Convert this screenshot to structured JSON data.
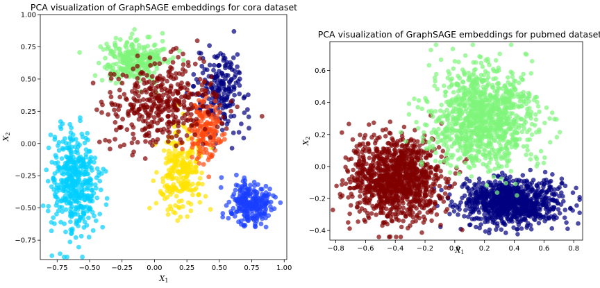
{
  "chart_data": [
    {
      "type": "scatter",
      "title": "PCA visualization of GraphSAGE embeddings for cora dataset",
      "xlabel": "X",
      "xlabel_sub": "1",
      "ylabel": "X",
      "ylabel_sub": "2",
      "xlim": [
        -0.88,
        1.02
      ],
      "ylim": [
        -0.9,
        1.0
      ],
      "xticks": [
        -0.75,
        -0.5,
        -0.25,
        0.0,
        0.25,
        0.5,
        0.75,
        1.0
      ],
      "xtick_labels": [
        "−0.75",
        "−0.50",
        "−0.25",
        "0.00",
        "0.25",
        "0.50",
        "0.75",
        "1.00"
      ],
      "yticks": [
        -0.75,
        -0.5,
        -0.25,
        0.0,
        0.25,
        0.5,
        0.75,
        1.0
      ],
      "ytick_labels": [
        "−0.75",
        "−0.50",
        "−0.25",
        "0.00",
        "0.25",
        "0.50",
        "0.75",
        "1.00"
      ],
      "grid": false,
      "legend": false,
      "series": [
        {
          "color": "#00cfff",
          "center": [
            -0.62,
            -0.3
          ],
          "spread": [
            0.09,
            0.2
          ],
          "count": 420
        },
        {
          "color": "#7ff57a",
          "center": [
            -0.16,
            0.65
          ],
          "spread": [
            0.12,
            0.08
          ],
          "count": 300
        },
        {
          "color": "#1a3fff",
          "center": [
            0.74,
            -0.47
          ],
          "spread": [
            0.08,
            0.09
          ],
          "count": 240
        },
        {
          "color": "#000080",
          "center": [
            0.52,
            0.4
          ],
          "spread": [
            0.1,
            0.15
          ],
          "count": 200
        },
        {
          "color": "#ffe200",
          "center": [
            0.2,
            -0.2
          ],
          "spread": [
            0.09,
            0.15
          ],
          "count": 250
        },
        {
          "color": "#ff4a10",
          "center": [
            0.38,
            0.12
          ],
          "spread": [
            0.06,
            0.12
          ],
          "count": 160
        },
        {
          "color": "#800000",
          "center": [
            0.05,
            0.3
          ],
          "spread": [
            0.22,
            0.15
          ],
          "count": 380
        }
      ]
    },
    {
      "type": "scatter",
      "title": "PCA visualization of GraphSAGE embeddings for pubmed dataset",
      "xlabel": "X",
      "xlabel_sub": "1",
      "ylabel": "X",
      "ylabel_sub": "2",
      "xlim": [
        -0.84,
        0.86
      ],
      "ylim": [
        -0.46,
        0.78
      ],
      "xticks": [
        -0.8,
        -0.6,
        -0.4,
        -0.2,
        0.0,
        0.2,
        0.4,
        0.6,
        0.8
      ],
      "xtick_labels": [
        "−0.8",
        "−0.6",
        "−0.4",
        "−0.2",
        "0.0",
        "0.2",
        "0.4",
        "0.6",
        "0.8"
      ],
      "yticks": [
        -0.4,
        -0.2,
        0.0,
        0.2,
        0.4,
        0.6
      ],
      "ytick_labels": [
        "−0.4",
        "−0.2",
        "0.0",
        "0.2",
        "0.4",
        "0.6"
      ],
      "grid": false,
      "legend": false,
      "series": [
        {
          "color": "#000080",
          "center": [
            0.38,
            -0.22
          ],
          "spread": [
            0.17,
            0.07
          ],
          "count": 900
        },
        {
          "color": "#800000",
          "center": [
            -0.4,
            -0.08
          ],
          "spread": [
            0.15,
            0.13
          ],
          "count": 1100
        },
        {
          "color": "#7ff57a",
          "center": [
            0.18,
            0.3
          ],
          "spread": [
            0.18,
            0.16
          ],
          "count": 1100
        }
      ]
    }
  ]
}
